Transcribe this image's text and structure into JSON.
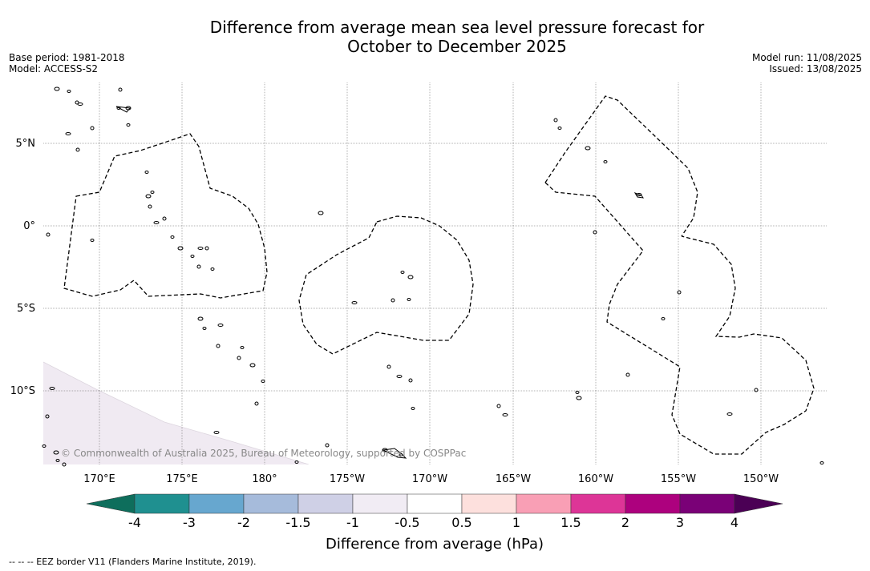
{
  "title_line1": "Difference from average mean sea level pressure forecast for",
  "title_line2": "October to December 2025",
  "meta_left": {
    "base_period": "Base period: 1981-2018",
    "model": "Model: ACCESS-S2"
  },
  "meta_right": {
    "model_run": "Model run: 11/08/2025",
    "issued": "Issued: 13/08/2025"
  },
  "map": {
    "lat_labels": [
      "5°N",
      "0°",
      "5°S",
      "10°S"
    ],
    "lon_labels": [
      "170°E",
      "175°E",
      "180°",
      "175°W",
      "170°W",
      "165°W",
      "160°W",
      "155°W",
      "150°W"
    ],
    "copyright": "© Commonwealth of Australia 2025, Bureau of Meteorology, supported by COSPPac",
    "field_color": "#f0eaf2"
  },
  "colorbar": {
    "label": "Difference from average (hPa)",
    "ticks": [
      "-4",
      "-3",
      "-2",
      "-1.5",
      "-1",
      "-0.5",
      "0.5",
      "1",
      "1.5",
      "2",
      "3",
      "4"
    ],
    "under_color": "#0e6e5c",
    "over_color": "#4b0055",
    "colors": [
      "#1f9090",
      "#67a7cf",
      "#a6bbdb",
      "#cfd0e6",
      "#f1ecf4",
      "#ffffff",
      "#fde0dd",
      "#f99fb5",
      "#dd3597",
      "#ad017e",
      "#7a0177"
    ]
  },
  "footnote": "--  --  -- EEZ border V11 (Flanders Marine Institute, 2019)."
}
